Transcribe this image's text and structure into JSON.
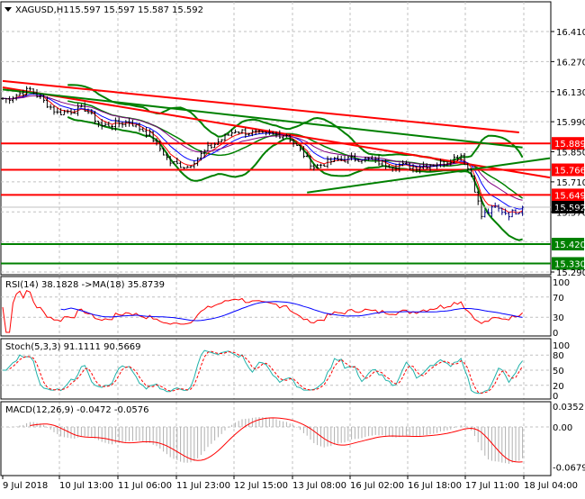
{
  "header": {
    "symbol_label": "XAGUSD,H1",
    "open": "15.597",
    "high": "15.597",
    "low": "15.587",
    "close": "15.592"
  },
  "chart_data": {
    "type": "line",
    "title": "XAGUSD,H1",
    "timeframe": "H1",
    "price_ticks": [
      "16.410",
      "16.270",
      "16.130",
      "15.990",
      "15.850",
      "15.710",
      "15.570",
      "15.290"
    ],
    "price_ylim": [
      15.29,
      16.41
    ],
    "close_path": [
      [
        1,
        16.095
      ],
      [
        8,
        16.14
      ],
      [
        16,
        16.03
      ],
      [
        24,
        16.05
      ],
      [
        29,
        15.97
      ],
      [
        37,
        15.99
      ],
      [
        43,
        15.93
      ],
      [
        49,
        15.8
      ],
      [
        54,
        15.78
      ],
      [
        60,
        15.865
      ],
      [
        68,
        15.95
      ],
      [
        76,
        15.93
      ],
      [
        83,
        15.93
      ],
      [
        91,
        15.78
      ],
      [
        97,
        15.81
      ],
      [
        105,
        15.82
      ],
      [
        113,
        15.79
      ],
      [
        121,
        15.78
      ],
      [
        129,
        15.8
      ],
      [
        134,
        15.835
      ],
      [
        137,
        15.74
      ],
      [
        140,
        15.55
      ],
      [
        144,
        15.59
      ],
      [
        148,
        15.56
      ],
      [
        153,
        15.592
      ]
    ],
    "current_price": {
      "label": "15.592",
      "value": 15.592,
      "color": "#000000"
    },
    "levels": [
      {
        "label": "15.889",
        "value": 15.889,
        "color": "#ff0000"
      },
      {
        "label": "15.766",
        "value": 15.766,
        "color": "#ff0000"
      },
      {
        "label": "15.649",
        "value": 15.649,
        "color": "#ff0000"
      },
      {
        "label": "15.420",
        "value": 15.42,
        "color": "#008000"
      },
      {
        "label": "15.330",
        "value": 15.33,
        "color": "#008000"
      }
    ],
    "trendlines": [
      {
        "color": "#ff0000",
        "from": [
          0,
          16.18
        ],
        "to": [
          151,
          15.94
        ]
      },
      {
        "color": "#ff0000",
        "from": [
          0,
          16.15
        ],
        "to": [
          160,
          15.73
        ]
      },
      {
        "color": "#008000",
        "from": [
          0,
          16.14
        ],
        "to": [
          152,
          15.87
        ]
      },
      {
        "color": "#008000",
        "from": [
          89,
          15.66
        ],
        "to": [
          160,
          15.82
        ]
      }
    ],
    "x_labels": [
      "9 Jul 2018",
      "10 Jul 13:00",
      "11 Jul 06:00",
      "11 Jul 23:00",
      "12 Jul 15:00",
      "13 Jul 08:00",
      "16 Jul 02:00",
      "16 Jul 18:00",
      "17 Jul 11:00",
      "18 Jul 04:00"
    ],
    "rsi": {
      "label": "RSI(14) 38.1828   ->MA(18) 35.8739",
      "ticks": [
        "100",
        "70",
        "30",
        "0"
      ],
      "ylim": [
        0,
        100
      ]
    },
    "stoch": {
      "label": "Stoch(5,3,3) 91.1111 90.5669",
      "ticks": [
        "100",
        "80",
        "50",
        "20",
        "0"
      ],
      "ylim": [
        0,
        100
      ]
    },
    "macd": {
      "label": "MACD(12,26,9) -0.0472 -0.0576",
      "ticks": [
        "0.0352",
        "0.00",
        "-0.0679"
      ],
      "ylim": [
        -0.0679,
        0.0352
      ]
    }
  }
}
